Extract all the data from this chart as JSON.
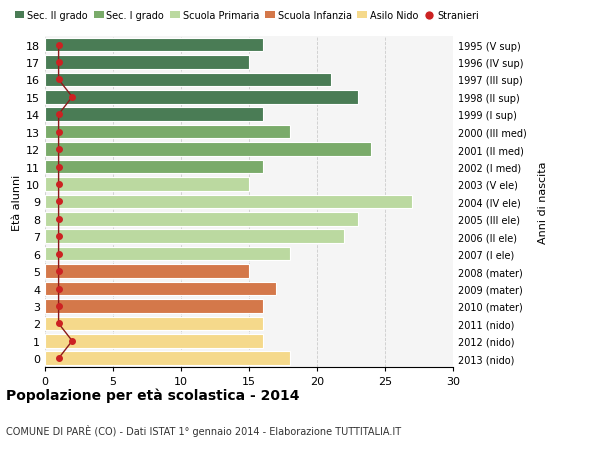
{
  "ages": [
    18,
    17,
    16,
    15,
    14,
    13,
    12,
    11,
    10,
    9,
    8,
    7,
    6,
    5,
    4,
    3,
    2,
    1,
    0
  ],
  "years": [
    "1995 (V sup)",
    "1996 (IV sup)",
    "1997 (III sup)",
    "1998 (II sup)",
    "1999 (I sup)",
    "2000 (III med)",
    "2001 (II med)",
    "2002 (I med)",
    "2003 (V ele)",
    "2004 (IV ele)",
    "2005 (III ele)",
    "2006 (II ele)",
    "2007 (I ele)",
    "2008 (mater)",
    "2009 (mater)",
    "2010 (mater)",
    "2011 (nido)",
    "2012 (nido)",
    "2013 (nido)"
  ],
  "values": [
    16,
    15,
    21,
    23,
    16,
    18,
    24,
    16,
    15,
    27,
    23,
    22,
    18,
    15,
    17,
    16,
    16,
    16,
    18
  ],
  "stranieri": [
    1,
    1,
    1,
    2,
    1,
    1,
    1,
    1,
    1,
    1,
    1,
    1,
    1,
    1,
    1,
    1,
    1,
    2,
    1
  ],
  "colors": [
    "#4a7c55",
    "#4a7c55",
    "#4a7c55",
    "#4a7c55",
    "#4a7c55",
    "#7aab6a",
    "#7aab6a",
    "#7aab6a",
    "#bbd9a0",
    "#bbd9a0",
    "#bbd9a0",
    "#bbd9a0",
    "#bbd9a0",
    "#d4784a",
    "#d4784a",
    "#d4784a",
    "#f5d98b",
    "#f5d98b",
    "#f5d98b"
  ],
  "legend_colors": [
    "#4a7c55",
    "#7aab6a",
    "#bbd9a0",
    "#d4784a",
    "#f5d98b",
    "#cc2222"
  ],
  "legend_labels": [
    "Sec. II grado",
    "Sec. I grado",
    "Scuola Primaria",
    "Scuola Infanzia",
    "Asilo Nido",
    "Stranieri"
  ],
  "ylabel_left": "Età alunni",
  "ylabel_right": "Anni di nascita",
  "title": "Popolazione per età scolastica - 2014",
  "subtitle": "COMUNE DI PARÈ (CO) - Dati ISTAT 1° gennaio 2014 - Elaborazione TUTTITALIA.IT",
  "xlim": [
    0,
    30
  ],
  "xticks": [
    0,
    5,
    10,
    15,
    20,
    25,
    30
  ],
  "bg_color": "#ffffff",
  "plot_bg_color": "#f5f5f5",
  "grid_color": "#cccccc",
  "bar_height": 0.78
}
